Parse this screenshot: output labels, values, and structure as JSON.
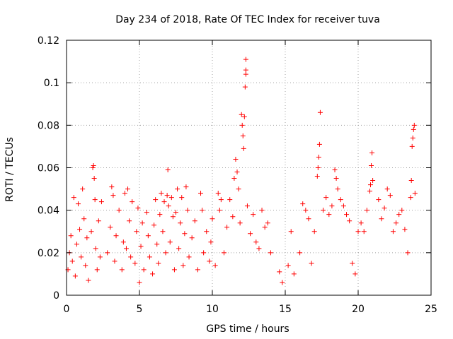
{
  "chart_data": {
    "type": "scatter",
    "title": "Day 234 of 2018, Rate Of TEC Index for receiver tuva",
    "xlabel": "GPS time / hours",
    "ylabel": "ROTI / TECUs",
    "xlim": [
      0,
      25
    ],
    "ylim": [
      0,
      0.12
    ],
    "xticks": [
      0,
      5,
      10,
      15,
      20,
      25
    ],
    "xtick_labels": [
      "0",
      "5",
      "10",
      "15",
      "20",
      "25"
    ],
    "yticks": [
      0,
      0.02,
      0.04,
      0.06,
      0.08,
      0.1,
      0.12
    ],
    "ytick_labels": [
      "0",
      "0.02",
      "0.04",
      "0.06",
      "0.08",
      "0.1",
      "0.12"
    ],
    "grid": true,
    "marker": "plus",
    "color": "#ff0000",
    "series": [
      {
        "name": "ROTI",
        "points": [
          [
            0.1,
            0.012
          ],
          [
            0.2,
            0.02
          ],
          [
            0.3,
            0.028
          ],
          [
            0.4,
            0.016
          ],
          [
            0.5,
            0.046
          ],
          [
            0.6,
            0.009
          ],
          [
            0.7,
            0.024
          ],
          [
            0.8,
            0.043
          ],
          [
            0.9,
            0.031
          ],
          [
            1.0,
            0.018
          ],
          [
            1.1,
            0.05
          ],
          [
            1.2,
            0.036
          ],
          [
            1.3,
            0.014
          ],
          [
            1.4,
            0.027
          ],
          [
            1.5,
            0.007
          ],
          [
            1.7,
            0.03
          ],
          [
            1.8,
            0.06
          ],
          [
            1.85,
            0.061
          ],
          [
            1.9,
            0.055
          ],
          [
            1.95,
            0.045
          ],
          [
            2.0,
            0.022
          ],
          [
            2.1,
            0.012
          ],
          [
            2.2,
            0.035
          ],
          [
            2.3,
            0.018
          ],
          [
            2.4,
            0.044
          ],
          [
            2.8,
            0.02
          ],
          [
            3.0,
            0.032
          ],
          [
            3.1,
            0.051
          ],
          [
            3.2,
            0.047
          ],
          [
            3.3,
            0.016
          ],
          [
            3.4,
            0.028
          ],
          [
            3.6,
            0.04
          ],
          [
            3.8,
            0.012
          ],
          [
            3.9,
            0.025
          ],
          [
            4.0,
            0.048
          ],
          [
            4.1,
            0.022
          ],
          [
            4.2,
            0.05
          ],
          [
            4.3,
            0.035
          ],
          [
            4.4,
            0.018
          ],
          [
            4.5,
            0.044
          ],
          [
            4.7,
            0.015
          ],
          [
            4.8,
            0.03
          ],
          [
            4.9,
            0.041
          ],
          [
            5.0,
            0.006
          ],
          [
            5.1,
            0.023
          ],
          [
            5.2,
            0.034
          ],
          [
            5.3,
            0.012
          ],
          [
            5.5,
            0.039
          ],
          [
            5.6,
            0.028
          ],
          [
            5.7,
            0.018
          ],
          [
            5.9,
            0.01
          ],
          [
            6.0,
            0.033
          ],
          [
            6.1,
            0.045
          ],
          [
            6.2,
            0.024
          ],
          [
            6.3,
            0.015
          ],
          [
            6.4,
            0.038
          ],
          [
            6.5,
            0.048
          ],
          [
            6.6,
            0.03
          ],
          [
            6.7,
            0.044
          ],
          [
            6.8,
            0.02
          ],
          [
            6.9,
            0.047
          ],
          [
            6.95,
            0.059
          ],
          [
            7.0,
            0.042
          ],
          [
            7.1,
            0.025
          ],
          [
            7.2,
            0.046
          ],
          [
            7.3,
            0.037
          ],
          [
            7.4,
            0.012
          ],
          [
            7.5,
            0.039
          ],
          [
            7.6,
            0.05
          ],
          [
            7.7,
            0.022
          ],
          [
            7.8,
            0.034
          ],
          [
            7.9,
            0.046
          ],
          [
            8.0,
            0.014
          ],
          [
            8.1,
            0.029
          ],
          [
            8.2,
            0.051
          ],
          [
            8.3,
            0.04
          ],
          [
            8.4,
            0.018
          ],
          [
            8.6,
            0.027
          ],
          [
            8.8,
            0.035
          ],
          [
            9.0,
            0.012
          ],
          [
            9.2,
            0.048
          ],
          [
            9.3,
            0.04
          ],
          [
            9.4,
            0.02
          ],
          [
            9.6,
            0.03
          ],
          [
            9.8,
            0.016
          ],
          [
            9.9,
            0.025
          ],
          [
            10.0,
            0.036
          ],
          [
            10.2,
            0.014
          ],
          [
            10.4,
            0.048
          ],
          [
            10.5,
            0.04
          ],
          [
            10.6,
            0.045
          ],
          [
            10.8,
            0.02
          ],
          [
            11.0,
            0.032
          ],
          [
            11.2,
            0.045
          ],
          [
            11.4,
            0.037
          ],
          [
            11.5,
            0.055
          ],
          [
            11.6,
            0.064
          ],
          [
            11.7,
            0.058
          ],
          [
            11.8,
            0.05
          ],
          [
            11.9,
            0.034
          ],
          [
            12.0,
            0.085
          ],
          [
            12.05,
            0.08
          ],
          [
            12.1,
            0.075
          ],
          [
            12.15,
            0.069
          ],
          [
            12.2,
            0.084
          ],
          [
            12.25,
            0.098
          ],
          [
            12.3,
            0.104
          ],
          [
            12.3,
            0.106
          ],
          [
            12.3,
            0.111
          ],
          [
            12.4,
            0.042
          ],
          [
            12.6,
            0.029
          ],
          [
            12.8,
            0.038
          ],
          [
            13.0,
            0.025
          ],
          [
            13.2,
            0.022
          ],
          [
            13.4,
            0.04
          ],
          [
            13.6,
            0.032
          ],
          [
            13.8,
            0.034
          ],
          [
            14.0,
            0.02
          ],
          [
            14.6,
            0.011
          ],
          [
            14.8,
            0.006
          ],
          [
            15.2,
            0.014
          ],
          [
            15.4,
            0.03
          ],
          [
            15.6,
            0.01
          ],
          [
            16.0,
            0.02
          ],
          [
            16.2,
            0.043
          ],
          [
            16.4,
            0.04
          ],
          [
            16.6,
            0.036
          ],
          [
            16.8,
            0.015
          ],
          [
            17.0,
            0.03
          ],
          [
            17.2,
            0.056
          ],
          [
            17.25,
            0.06
          ],
          [
            17.3,
            0.065
          ],
          [
            17.35,
            0.071
          ],
          [
            17.4,
            0.086
          ],
          [
            17.6,
            0.04
          ],
          [
            17.8,
            0.046
          ],
          [
            18.0,
            0.038
          ],
          [
            18.2,
            0.042
          ],
          [
            18.4,
            0.059
          ],
          [
            18.5,
            0.055
          ],
          [
            18.6,
            0.05
          ],
          [
            18.8,
            0.045
          ],
          [
            19.0,
            0.042
          ],
          [
            19.2,
            0.038
          ],
          [
            19.4,
            0.035
          ],
          [
            19.6,
            0.015
          ],
          [
            19.8,
            0.01
          ],
          [
            20.0,
            0.03
          ],
          [
            20.2,
            0.034
          ],
          [
            20.4,
            0.03
          ],
          [
            20.6,
            0.04
          ],
          [
            20.8,
            0.049
          ],
          [
            20.85,
            0.052
          ],
          [
            20.9,
            0.061
          ],
          [
            20.95,
            0.067
          ],
          [
            21.0,
            0.054
          ],
          [
            21.4,
            0.045
          ],
          [
            21.6,
            0.036
          ],
          [
            21.8,
            0.041
          ],
          [
            22.0,
            0.05
          ],
          [
            22.2,
            0.047
          ],
          [
            22.4,
            0.03
          ],
          [
            22.6,
            0.034
          ],
          [
            22.8,
            0.038
          ],
          [
            23.0,
            0.04
          ],
          [
            23.2,
            0.031
          ],
          [
            23.4,
            0.02
          ],
          [
            23.6,
            0.046
          ],
          [
            23.65,
            0.054
          ],
          [
            23.7,
            0.07
          ],
          [
            23.75,
            0.074
          ],
          [
            23.8,
            0.078
          ],
          [
            23.85,
            0.08
          ],
          [
            23.9,
            0.048
          ]
        ]
      }
    ]
  }
}
